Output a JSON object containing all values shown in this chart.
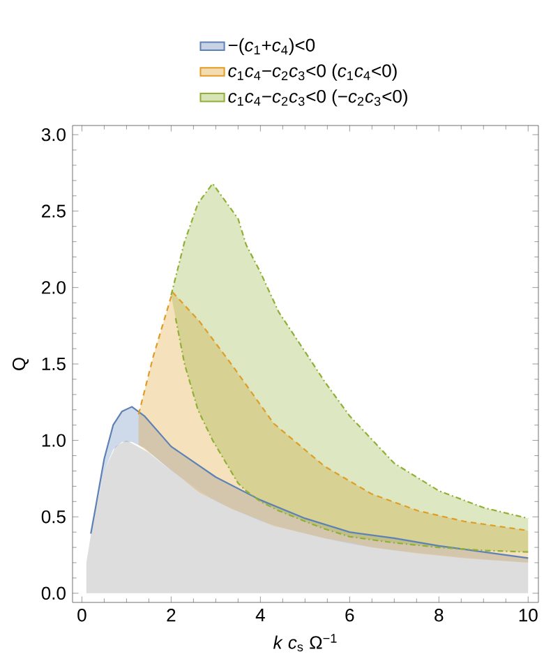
{
  "chart_data": {
    "type": "line",
    "xlabel": "*k* *c*$_{s}$ Ω$^{−1}$",
    "ylabel": "Q",
    "xlim": [
      -0.21,
      10.23
    ],
    "ylim": [
      -0.06,
      3.06
    ],
    "xticks": [
      0,
      2,
      4,
      6,
      8,
      10
    ],
    "yticks": [
      {
        "value": 0,
        "label": "0.0"
      },
      {
        "value": 0.5,
        "label": "0.5"
      },
      {
        "value": 1,
        "label": "1.0"
      },
      {
        "value": 1.5,
        "label": "1.5"
      },
      {
        "value": 2,
        "label": "2.0"
      },
      {
        "value": 2.5,
        "label": "2.5"
      },
      {
        "value": 3,
        "label": "3.0"
      }
    ],
    "grid": false,
    "legend": "top",
    "marker": "none",
    "series": [
      {
        "type": "area",
        "color": "#dddddd",
        "x": [
          0.1,
          0.25,
          0.5,
          0.75,
          1,
          1.5,
          2,
          3,
          4,
          5,
          6,
          7,
          8,
          9,
          10
        ],
        "values": [
          0.2,
          0.47,
          0.8,
          0.96,
          1,
          0.92,
          0.8,
          0.6,
          0.47,
          0.39,
          0.32,
          0.28,
          0.25,
          0.22,
          0.2
        ]
      },
      {
        "name": "−(*c*$_{1}$+*c*$_{4}$)<0",
        "color": "#5e81b5",
        "line_style": "solid",
        "x": [
          0.2,
          0.3,
          0.5,
          0.7,
          0.9,
          1.12,
          1.4,
          2,
          3,
          4,
          5,
          6,
          7,
          8,
          9,
          10
        ],
        "values": [
          0.39,
          0.55,
          0.88,
          1.1,
          1.19,
          1.22,
          1.16,
          0.96,
          0.76,
          0.61,
          0.49,
          0.4,
          0.36,
          0.31,
          0.27,
          0.23
        ],
        "upper": [
          0.39,
          0.55,
          0.88,
          1.1,
          1.19,
          1.22,
          1.16,
          0.96,
          0.76,
          0.61,
          0.49,
          0.4,
          0.36,
          0.31,
          0.27,
          0.23
        ],
        "lower": [
          0.39,
          0.55,
          0.8,
          0.94,
          0.99,
          0.99,
          0.95,
          0.8,
          0.6,
          0.47,
          0.39,
          0.32,
          0.28,
          0.25,
          0.22,
          0.2
        ]
      },
      {
        "name": "*c*$_{1}$*c*$_{4}$−*c*$_{2}$*c*$_{3}$<0 (*c*$_{1}$*c*$_{4}$<0)",
        "color": "#e19c24",
        "line_style": "dashed",
        "x": [
          1.27,
          1.6,
          2.03,
          2.63,
          3.37,
          4.3,
          5.44,
          6.49,
          7.53,
          8.57,
          10
        ],
        "values": [
          1.17,
          1.55,
          1.97,
          1.78,
          1.49,
          1.11,
          0.83,
          0.65,
          0.54,
          0.47,
          0.41
        ],
        "upper": [
          1.17,
          1.55,
          1.97,
          1.78,
          1.49,
          1.11,
          0.83,
          0.65,
          0.54,
          0.47,
          0.41
        ],
        "lower": [
          0.97,
          0.9,
          0.8,
          0.66,
          0.55,
          0.44,
          0.36,
          0.3,
          0.26,
          0.23,
          0.2
        ]
      },
      {
        "name": "*c*$_{1}$*c*$_{4}$−*c*$_{2}$*c*$_{3}$<0 (−*c*$_{2}$*c*$_{3}$<0)",
        "color": "#8fb032",
        "line_style": "dashdot",
        "x": [
          2,
          2.3,
          2.6,
          2.93,
          3.5,
          3.68,
          4,
          4.41,
          5,
          5.45,
          6,
          7,
          8,
          9,
          10
        ],
        "values": [
          1.95,
          2.3,
          2.55,
          2.68,
          2.45,
          2.28,
          2.1,
          1.84,
          1.58,
          1.38,
          1.16,
          0.85,
          0.67,
          0.56,
          0.49
        ],
        "upper": [
          1.95,
          2.3,
          2.55,
          2.68,
          2.45,
          2.28,
          2.1,
          1.84,
          1.58,
          1.38,
          1.16,
          0.85,
          0.67,
          0.56,
          0.49
        ],
        "lower": [
          1.95,
          1.5,
          1.2,
          1.0,
          0.72,
          0.67,
          0.6,
          0.54,
          0.47,
          0.42,
          0.37,
          0.33,
          0.3,
          0.28,
          0.27
        ]
      },
      {
        "color": "#8fb032",
        "line_style": "dashdot",
        "x": [
          2.1,
          2.3,
          2.6,
          2.93,
          3.5,
          3.68,
          4,
          4.41,
          5,
          5.45,
          6,
          7,
          8,
          9,
          10
        ],
        "values": [
          1.8,
          1.5,
          1.2,
          1.0,
          0.72,
          0.67,
          0.6,
          0.54,
          0.47,
          0.42,
          0.37,
          0.33,
          0.3,
          0.28,
          0.27
        ]
      }
    ]
  }
}
